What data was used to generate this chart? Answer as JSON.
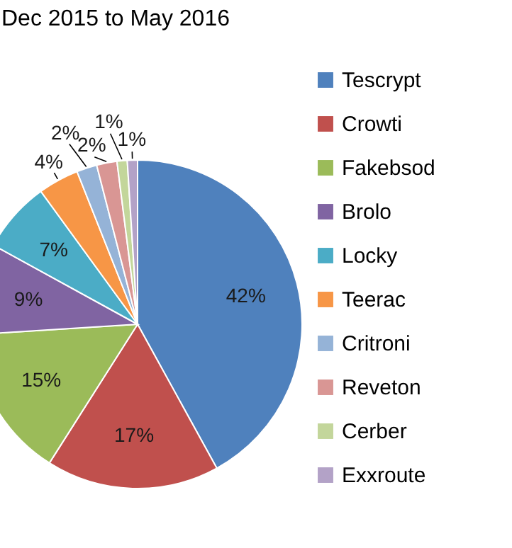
{
  "chart_data": {
    "type": "pie",
    "title": "Dec 2015 to May 2016",
    "categories": [
      "Tescrypt",
      "Crowti",
      "Fakebsod",
      "Brolo",
      "Locky",
      "Teerac",
      "Critroni",
      "Reveton",
      "Cerber",
      "Exxroute"
    ],
    "values": [
      42,
      17,
      15,
      9,
      7,
      4,
      2,
      2,
      1,
      1
    ],
    "value_labels": [
      "42%",
      "17%",
      "15%",
      "9%",
      "7%",
      "4%",
      "2%",
      "2%",
      "1%",
      "1%"
    ],
    "colors": [
      "#4f81bd",
      "#c0504d",
      "#9bbb59",
      "#8064a2",
      "#4bacc6",
      "#f79646",
      "#95b3d7",
      "#d99694",
      "#c3d69b",
      "#b3a2c7"
    ],
    "legend": "right"
  }
}
